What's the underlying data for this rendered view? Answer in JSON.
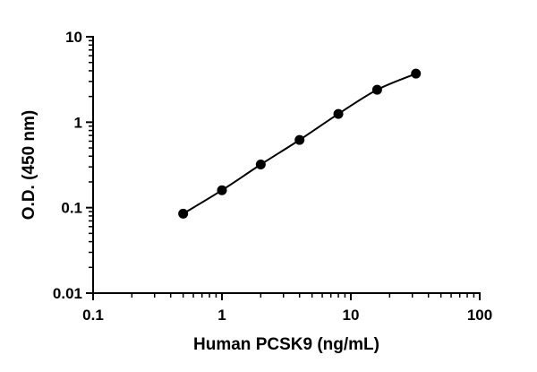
{
  "chart_data": {
    "type": "scatter",
    "xlabel": "Human PCSK9 (ng/mL)",
    "ylabel": "O.D. (450 nm)",
    "x_scale": "log",
    "y_scale": "log",
    "xlim": [
      0.1,
      100
    ],
    "ylim": [
      0.01,
      10
    ],
    "x_ticks": [
      "0.1",
      "1",
      "10",
      "100"
    ],
    "y_ticks": [
      "0.01",
      "0.1",
      "1",
      "10"
    ],
    "grid": false,
    "legend": "none",
    "series": [
      {
        "x": [
          0.5,
          1,
          2,
          4,
          8,
          16,
          32
        ],
        "y": [
          0.085,
          0.16,
          0.32,
          0.62,
          1.25,
          2.4,
          3.7
        ],
        "marker": "circle",
        "color": "#000000",
        "fit_line": true
      }
    ]
  }
}
